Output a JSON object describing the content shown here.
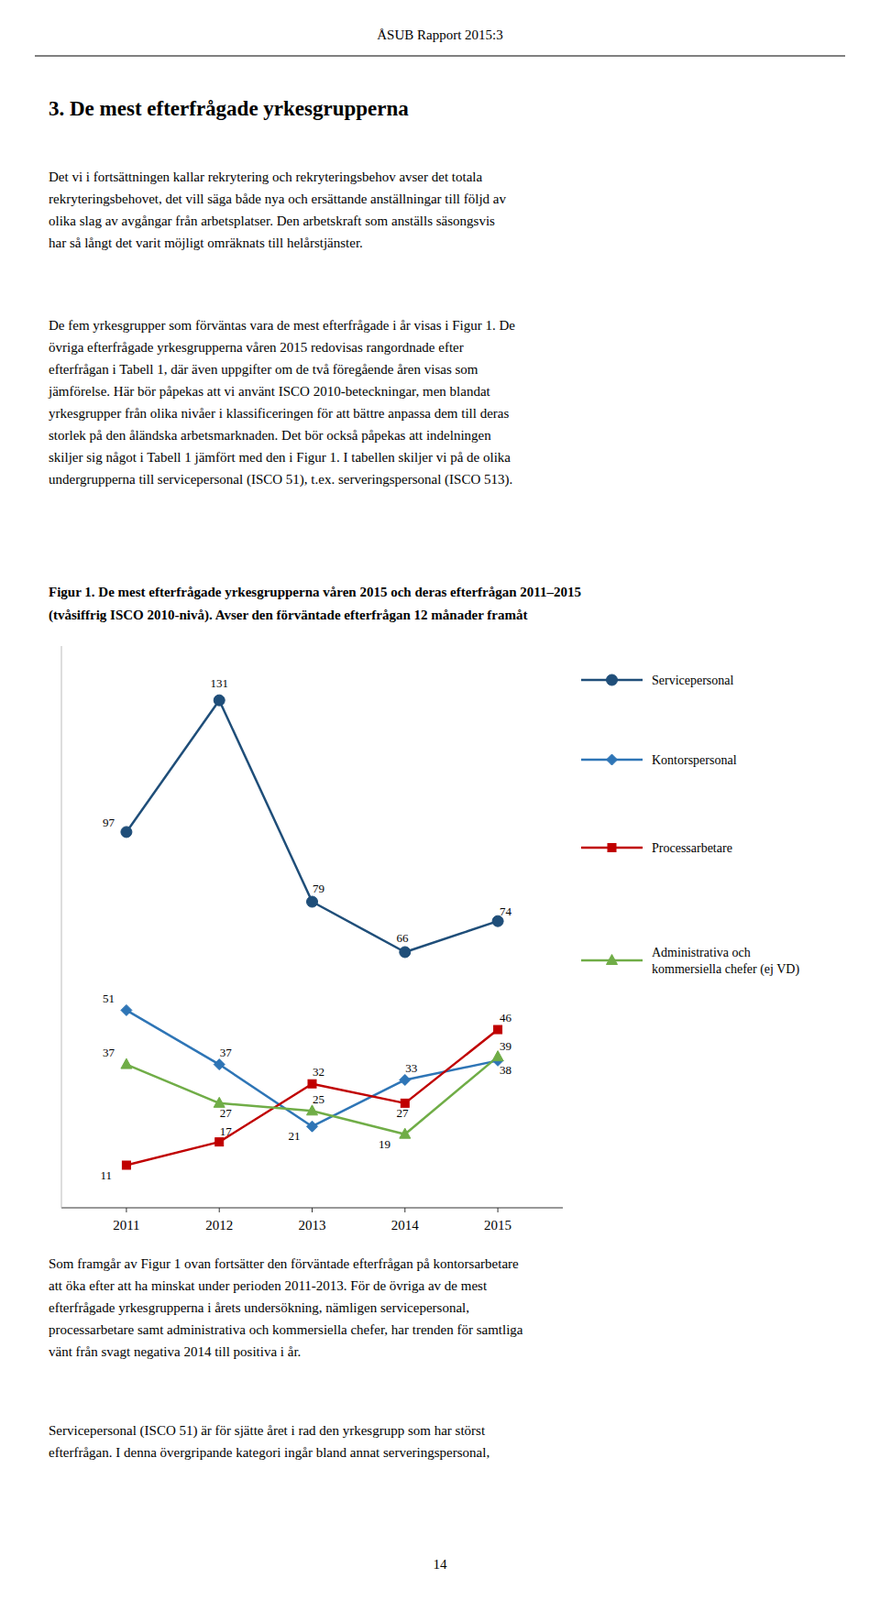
{
  "page_header": "ÅSUB Rapport 2015:3",
  "heading": "3. De mest efterfrågade yrkesgrupperna",
  "paragraphs": [
    "Det vi i fortsättningen kallar rekrytering och rekryteringsbehov avser det totala\nrekryteringsbehovet, det vill säga både nya och ersättande anställningar till följd av\nolika slag av avgångar från arbetsplatser. Den arbetskraft som anställs säsongsvis\nhar så långt det varit möjligt omräknats till helårstjänster.",
    "De fem yrkesgrupper som förväntas vara de mest efterfrågade i år visas i Figur 1. De\növriga efterfrågade yrkesgrupperna våren 2015 redovisas rangordnade efter\nefterfrågan i Tabell 1, där även uppgifter om de två föregående åren visas som\njämförelse. Här bör påpekas att vi använt ISCO 2010-beteckningar, men blandat\nyrkesgrupper från olika nivåer i klassificeringen för att bättre anpassa dem till deras\nstorlek på den åländska arbetsmarknaden. Det bör också påpekas att indelningen\nskiljer sig något i Tabell 1 jämfört med den i Figur 1. I tabellen skiljer vi på de olika\nundergrupperna till servicepersonal (ISCO 51), t.ex. serveringspersonal (ISCO 513)."
  ],
  "footer_paragraphs": [
    "Som framgår av Figur 1 ovan fortsätter den förväntade efterfrågan på kontorsarbetare\natt öka efter att ha minskat under perioden 2011-2013. För de övriga av de mest\nefterfrågade yrkesgrupperna i årets undersökning, nämligen servicepersonal,\nprocessarbetare samt administrativa och kommersiella chefer, har trenden för samtliga\nvänt från svagt negativa 2014 till positiva i år.",
    "Servicepersonal (ISCO 51) är för sjätte året i rad den yrkesgrupp som har störst\nefterfrågan. I denna övergripande kategori ingår bland annat serveringspersonal,"
  ],
  "page_number": "14",
  "chart_data": {
    "type": "line",
    "title": "Figur 1. De mest efterfrågade yrkesgrupperna våren 2015 och deras efterfrågan 2011–2015",
    "subtitle": "(tvåsiffrig ISCO 2010-nivå). Avser den förväntade efterfrågan 12 månader framåt",
    "x": [
      2011,
      2012,
      2013,
      2014,
      2015
    ],
    "xlim": [
      2010.3,
      2015.7
    ],
    "xticks": [
      2011,
      2012,
      2013,
      2014,
      2015
    ],
    "ylim": [
      0,
      145
    ],
    "series": [
      {
        "name": "Servicepersonal",
        "color": "#1f4e79",
        "marker": "circle",
        "values": [
          97,
          131,
          79,
          66,
          74
        ]
      },
      {
        "name": "Kontorspersonal",
        "color": "#2e75b6",
        "marker": "diamond",
        "values": [
          51,
          37,
          21,
          33,
          38
        ]
      },
      {
        "name": "Processarbetare",
        "color": "#c00000",
        "marker": "square",
        "values": [
          11,
          17,
          32,
          27,
          46
        ]
      },
      {
        "name": "Administrativa och\nkommersiella chefer (ej VD)",
        "color": "#70ad47",
        "marker": "triangle",
        "values": [
          37,
          27,
          25,
          19,
          39
        ]
      }
    ],
    "data_labels": true,
    "tick_labels": "x",
    "grid": false,
    "legend": "right"
  }
}
